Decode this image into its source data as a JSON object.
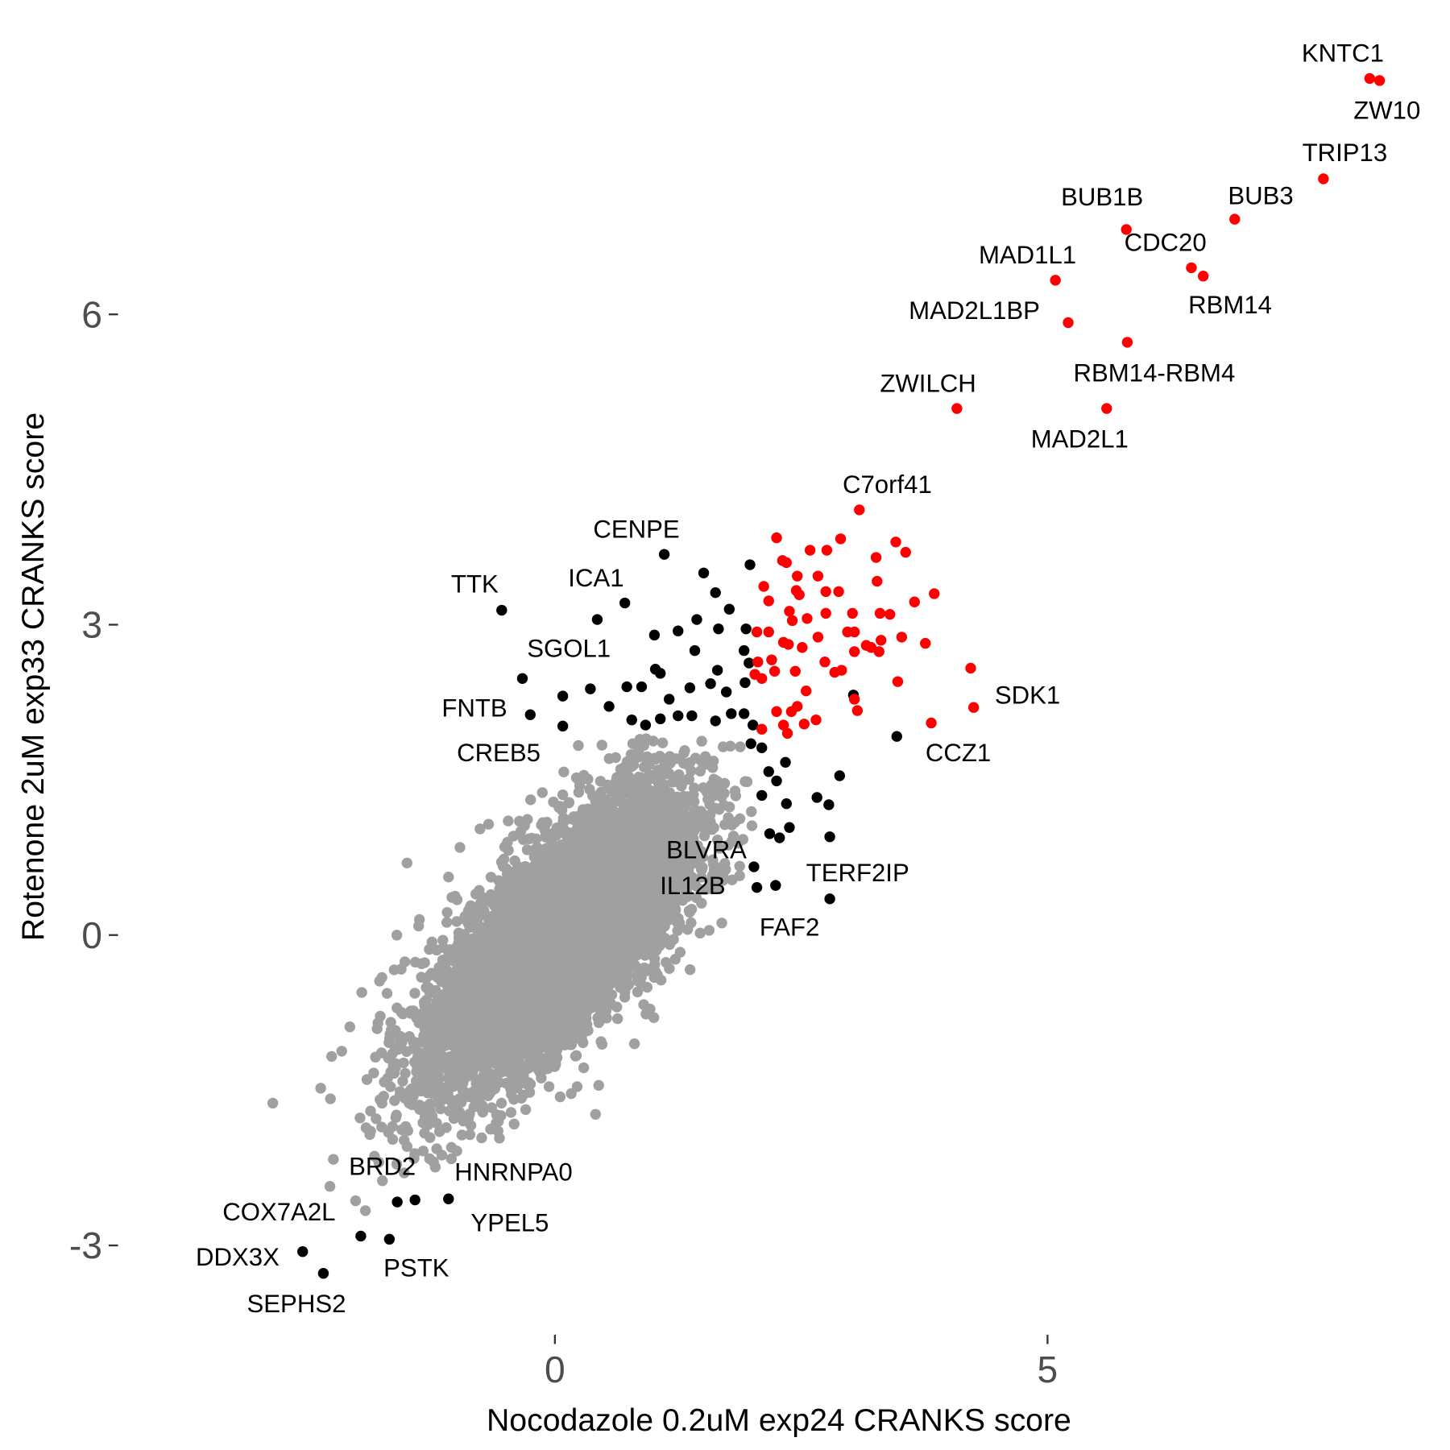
{
  "chart_data": {
    "type": "scatter",
    "title": "",
    "xlabel": "Nocodazole 0.2uM exp24 CRANKS score",
    "ylabel": "Rotenone 2uM exp33 CRANKS score",
    "xlim": [
      -3.9,
      8.6
    ],
    "ylim": [
      -3.7,
      8.9
    ],
    "x_ticks": [
      {
        "value": 0,
        "label": "0"
      },
      {
        "value": 5,
        "label": "5"
      }
    ],
    "y_ticks": [
      {
        "value": -3,
        "label": "-3"
      },
      {
        "value": 0,
        "label": "0"
      },
      {
        "value": 3,
        "label": "3"
      },
      {
        "value": 6,
        "label": "6"
      }
    ],
    "grid": false,
    "legend": "none",
    "colors": {
      "both_hit": "#ff0000",
      "single_hit": "#000000",
      "background": "#a0a0a0"
    },
    "labeled_points": [
      {
        "gene": "KNTC1",
        "x": 8.27,
        "y": 8.28,
        "group": "both_hit"
      },
      {
        "gene": "ZW10",
        "x": 8.37,
        "y": 8.26,
        "group": "both_hit"
      },
      {
        "gene": "TRIP13",
        "x": 7.8,
        "y": 7.31,
        "group": "both_hit"
      },
      {
        "gene": "BUB3",
        "x": 6.9,
        "y": 6.92,
        "group": "both_hit"
      },
      {
        "gene": "BUB1B",
        "x": 5.8,
        "y": 6.82,
        "group": "both_hit"
      },
      {
        "gene": "CDC20",
        "x": 6.46,
        "y": 6.45,
        "group": "both_hit"
      },
      {
        "gene": "RBM14",
        "x": 6.58,
        "y": 6.37,
        "group": "both_hit"
      },
      {
        "gene": "MAD1L1",
        "x": 5.08,
        "y": 6.33,
        "group": "both_hit"
      },
      {
        "gene": "MAD2L1BP",
        "x": 5.21,
        "y": 5.92,
        "group": "both_hit"
      },
      {
        "gene": "RBM14-RBM4",
        "x": 5.81,
        "y": 5.73,
        "group": "both_hit"
      },
      {
        "gene": "ZWILCH",
        "x": 4.08,
        "y": 5.09,
        "group": "both_hit"
      },
      {
        "gene": "MAD2L1",
        "x": 5.6,
        "y": 5.09,
        "group": "both_hit"
      },
      {
        "gene": "C7orf41",
        "x": 3.09,
        "y": 4.11,
        "group": "both_hit"
      },
      {
        "gene": "SDK1",
        "x": 4.25,
        "y": 2.2,
        "group": "both_hit"
      },
      {
        "gene": "CCZ1",
        "x": 3.82,
        "y": 2.05,
        "group": "both_hit"
      },
      {
        "gene": "CENPE",
        "x": 1.11,
        "y": 3.68,
        "group": "single_hit"
      },
      {
        "gene": "TTK",
        "x": -0.54,
        "y": 3.14,
        "group": "single_hit"
      },
      {
        "gene": "ICA1",
        "x": 0.71,
        "y": 3.21,
        "group": "single_hit"
      },
      {
        "gene": "SGOL1",
        "x": -0.33,
        "y": 2.48,
        "group": "single_hit"
      },
      {
        "gene": "FNTB",
        "x": -0.25,
        "y": 2.13,
        "group": "single_hit"
      },
      {
        "gene": "CREB5",
        "x": 0.08,
        "y": 2.02,
        "group": "single_hit"
      },
      {
        "gene": "BLVRA",
        "x": 2.02,
        "y": 0.66,
        "group": "single_hit"
      },
      {
        "gene": "IL12B",
        "x": 2.05,
        "y": 0.46,
        "group": "single_hit"
      },
      {
        "gene": "FAF2",
        "x": 2.24,
        "y": 0.48,
        "group": "single_hit"
      },
      {
        "gene": "TERF2IP",
        "x": 2.79,
        "y": 0.35,
        "group": "single_hit"
      },
      {
        "gene": "BRD2",
        "x": -1.6,
        "y": -2.58,
        "group": "single_hit"
      },
      {
        "gene": "HNRNPA0",
        "x": -1.42,
        "y": -2.56,
        "group": "single_hit"
      },
      {
        "gene": "YPEL5",
        "x": -1.08,
        "y": -2.55,
        "group": "single_hit"
      },
      {
        "gene": "COX7A2L",
        "x": -1.97,
        "y": -2.91,
        "group": "single_hit"
      },
      {
        "gene": "PSTK",
        "x": -1.68,
        "y": -2.94,
        "group": "single_hit"
      },
      {
        "gene": "DDX3X",
        "x": -2.56,
        "y": -3.06,
        "group": "single_hit"
      },
      {
        "gene": "SEPHS2",
        "x": -2.35,
        "y": -3.27,
        "group": "single_hit"
      }
    ],
    "unlabeled_red": [
      [
        2.25,
        3.84
      ],
      [
        2.9,
        3.83
      ],
      [
        3.46,
        3.8
      ],
      [
        3.56,
        3.7
      ],
      [
        3.26,
        3.65
      ],
      [
        2.59,
        3.72
      ],
      [
        2.76,
        3.72
      ],
      [
        2.31,
        3.62
      ],
      [
        2.35,
        3.6
      ],
      [
        2.12,
        3.37
      ],
      [
        2.46,
        3.47
      ],
      [
        2.67,
        3.47
      ],
      [
        2.88,
        3.32
      ],
      [
        3.27,
        3.42
      ],
      [
        3.85,
        3.3
      ],
      [
        3.65,
        3.22
      ],
      [
        2.45,
        3.33
      ],
      [
        2.48,
        3.29
      ],
      [
        2.75,
        3.32
      ],
      [
        2.17,
        3.23
      ],
      [
        2.38,
        3.13
      ],
      [
        2.56,
        3.06
      ],
      [
        2.75,
        3.11
      ],
      [
        3.02,
        3.11
      ],
      [
        3.3,
        3.11
      ],
      [
        3.4,
        3.1
      ],
      [
        2.05,
        2.93
      ],
      [
        2.17,
        2.93
      ],
      [
        2.41,
        3.04
      ],
      [
        2.97,
        2.93
      ],
      [
        3.04,
        2.93
      ],
      [
        3.16,
        2.8
      ],
      [
        3.21,
        2.78
      ],
      [
        3.31,
        2.85
      ],
      [
        3.52,
        2.88
      ],
      [
        3.76,
        2.82
      ],
      [
        2.67,
        2.88
      ],
      [
        2.32,
        2.83
      ],
      [
        2.37,
        2.81
      ],
      [
        2.51,
        2.78
      ],
      [
        2.74,
        2.64
      ],
      [
        2.84,
        2.54
      ],
      [
        2.91,
        2.56
      ],
      [
        3.04,
        2.74
      ],
      [
        3.29,
        2.74
      ],
      [
        2.2,
        2.66
      ],
      [
        2.06,
        2.64
      ],
      [
        2.03,
        2.52
      ],
      [
        2.1,
        2.48
      ],
      [
        2.23,
        2.55
      ],
      [
        2.44,
        2.55
      ],
      [
        2.55,
        2.36
      ],
      [
        2.46,
        2.21
      ],
      [
        2.4,
        2.16
      ],
      [
        2.25,
        2.16
      ],
      [
        2.65,
        2.08
      ],
      [
        2.53,
        2.04
      ],
      [
        2.32,
        2.03
      ],
      [
        2.1,
        1.99
      ],
      [
        2.36,
        1.95
      ],
      [
        3.07,
        2.17
      ],
      [
        3.04,
        2.28
      ],
      [
        3.48,
        2.45
      ],
      [
        4.22,
        2.58
      ]
    ],
    "unlabeled_black": [
      [
        0.43,
        3.05
      ],
      [
        1.51,
        3.5
      ],
      [
        1.63,
        3.31
      ],
      [
        1.77,
        3.15
      ],
      [
        1.44,
        3.05
      ],
      [
        1.66,
        2.96
      ],
      [
        1.94,
        2.96
      ],
      [
        1.25,
        2.94
      ],
      [
        1.01,
        2.9
      ],
      [
        1.42,
        2.75
      ],
      [
        1.02,
        2.57
      ],
      [
        1.07,
        2.53
      ],
      [
        0.73,
        2.4
      ],
      [
        0.36,
        2.38
      ],
      [
        0.08,
        2.31
      ],
      [
        0.88,
        2.4
      ],
      [
        1.16,
        2.28
      ],
      [
        1.37,
        2.39
      ],
      [
        1.58,
        2.43
      ],
      [
        1.65,
        2.56
      ],
      [
        1.74,
        2.35
      ],
      [
        1.93,
        2.44
      ],
      [
        1.97,
        2.63
      ],
      [
        1.92,
        2.75
      ],
      [
        1.25,
        2.12
      ],
      [
        1.39,
        2.12
      ],
      [
        1.07,
        2.09
      ],
      [
        0.78,
        2.08
      ],
      [
        0.92,
        2.03
      ],
      [
        0.55,
        2.21
      ],
      [
        1.63,
        2.07
      ],
      [
        1.79,
        2.14
      ],
      [
        1.92,
        2.14
      ],
      [
        2.01,
        2.03
      ],
      [
        1.99,
        1.85
      ],
      [
        2.1,
        1.81
      ],
      [
        2.17,
        1.58
      ],
      [
        2.34,
        1.67
      ],
      [
        2.25,
        1.49
      ],
      [
        2.1,
        1.35
      ],
      [
        2.35,
        1.27
      ],
      [
        2.66,
        1.33
      ],
      [
        2.78,
        1.26
      ],
      [
        2.89,
        1.54
      ],
      [
        2.38,
        1.04
      ],
      [
        2.18,
        0.98
      ],
      [
        2.28,
        0.94
      ],
      [
        2.79,
        0.95
      ],
      [
        3.47,
        1.92
      ],
      [
        3.03,
        2.32
      ],
      [
        1.98,
        3.58
      ]
    ],
    "background_cloud": {
      "n": 6500,
      "mean_x": 0.05,
      "mean_y": -0.05,
      "sd_x": 0.68,
      "sd_y": 0.72,
      "correlation": 0.72,
      "seed": 17
    }
  }
}
